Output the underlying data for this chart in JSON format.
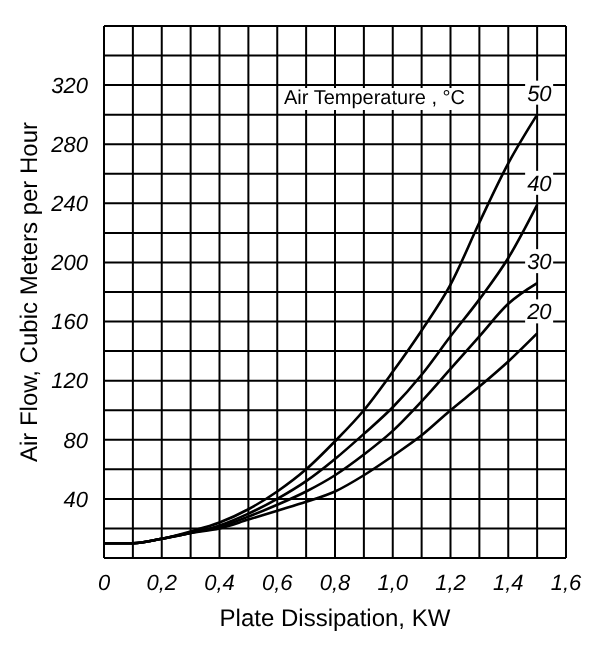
{
  "chart_data": {
    "type": "line",
    "xlabel": "Plate Dissipation, KW",
    "ylabel": "Air Flow, Cubic Meters per Hour",
    "legend_title": "Air Temperature , °C",
    "xlim": [
      0,
      1.6
    ],
    "ylim": [
      0,
      360
    ],
    "xticks": [
      0,
      {
        "value": 0.1,
        "label": null
      },
      {
        "value": 0.2,
        "label": "0,2"
      },
      {
        "value": 0.3,
        "label": null
      },
      {
        "value": 0.4,
        "label": "0,4"
      },
      {
        "value": 0.5,
        "label": null
      },
      {
        "value": 0.6,
        "label": "0,6"
      },
      {
        "value": 0.7,
        "label": null
      },
      {
        "value": 0.8,
        "label": "0,8"
      },
      {
        "value": 0.9,
        "label": null
      },
      {
        "value": 1.0,
        "label": "1,0"
      },
      {
        "value": 1.1,
        "label": null
      },
      {
        "value": 1.2,
        "label": "1,2"
      },
      {
        "value": 1.3,
        "label": null
      },
      {
        "value": 1.4,
        "label": "1,4"
      },
      {
        "value": 1.5,
        "label": null
      },
      {
        "value": 1.6,
        "label": "1,6"
      }
    ],
    "yticks": [
      {
        "value": 20,
        "label": null
      },
      40,
      {
        "value": 60,
        "label": null
      },
      80,
      {
        "value": 100,
        "label": null
      },
      120,
      {
        "value": 140,
        "label": null
      },
      160,
      {
        "value": 180,
        "label": null
      },
      200,
      {
        "value": 220,
        "label": null
      },
      240,
      {
        "value": 260,
        "label": null
      },
      280,
      {
        "value": 300,
        "label": null
      },
      320,
      {
        "value": 340,
        "label": null
      },
      {
        "value": 360,
        "label": null
      }
    ],
    "grid": true,
    "marker": "none",
    "line_style": "solid",
    "series": [
      {
        "name": "50",
        "color": "#000000",
        "x": [
          0,
          0.1,
          0.2,
          0.3,
          0.4,
          0.5,
          0.6,
          0.7,
          0.8,
          0.9,
          1.0,
          1.1,
          1.2,
          1.3,
          1.4,
          1.5
        ],
        "values": [
          10,
          10,
          13,
          18,
          24,
          33,
          45,
          60,
          79,
          100,
          126,
          154,
          185,
          227,
          267,
          300
        ]
      },
      {
        "name": "40",
        "color": "#000000",
        "x": [
          0,
          0.1,
          0.2,
          0.3,
          0.4,
          0.5,
          0.6,
          0.7,
          0.8,
          0.9,
          1.0,
          1.1,
          1.2,
          1.3,
          1.4,
          1.5
        ],
        "values": [
          10,
          10,
          13,
          17,
          22,
          30,
          40,
          52,
          67,
          84,
          102,
          124,
          150,
          175,
          203,
          239
        ]
      },
      {
        "name": "30",
        "color": "#000000",
        "x": [
          0,
          0.1,
          0.2,
          0.3,
          0.4,
          0.5,
          0.6,
          0.7,
          0.8,
          0.9,
          1.0,
          1.1,
          1.2,
          1.3,
          1.4,
          1.5
        ],
        "values": [
          10,
          10,
          13,
          17,
          21,
          28,
          36,
          45,
          56,
          70,
          86,
          106,
          128,
          150,
          172,
          186
        ]
      },
      {
        "name": "20",
        "color": "#000000",
        "x": [
          0,
          0.1,
          0.2,
          0.3,
          0.4,
          0.5,
          0.6,
          0.7,
          0.8,
          0.9,
          1.0,
          1.1,
          1.2,
          1.3,
          1.4,
          1.5
        ],
        "values": [
          10,
          10,
          13,
          17,
          20,
          26,
          32,
          38,
          45,
          56,
          69,
          83,
          100,
          116,
          133,
          152
        ]
      }
    ]
  }
}
